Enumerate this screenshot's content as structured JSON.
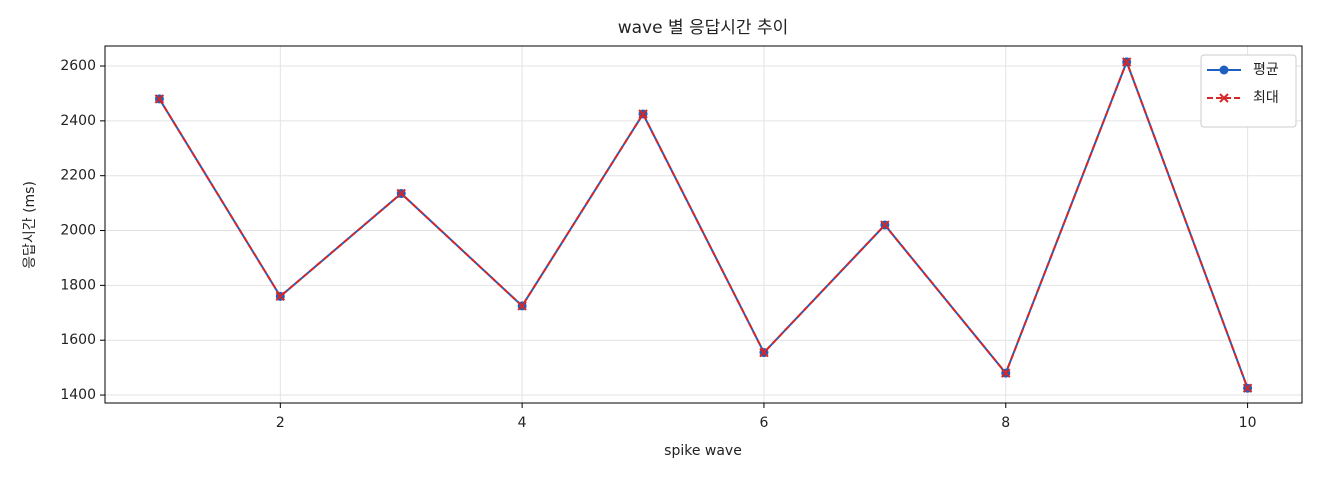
{
  "chart_data": {
    "type": "line",
    "title": "wave 별 응답시간 추이",
    "xlabel": "spike wave",
    "ylabel": "응답시간 (ms)",
    "x": [
      1,
      2,
      3,
      4,
      5,
      6,
      7,
      8,
      9,
      10
    ],
    "series": [
      {
        "name": "평균",
        "color": "#1f5fbf",
        "marker": "o",
        "linestyle": "solid",
        "values": [
          2480,
          1760,
          2135,
          1725,
          2425,
          1555,
          2020,
          1480,
          2615,
          1425
        ]
      },
      {
        "name": "최대",
        "color": "#d62728",
        "marker": "x",
        "linestyle": "dashed",
        "values": [
          2480,
          1760,
          2135,
          1725,
          2425,
          1555,
          2020,
          1480,
          2615,
          1425
        ]
      }
    ],
    "xlim": [
      0.55,
      10.45
    ],
    "ylim": [
      1371,
      2673
    ],
    "xticks": [
      2,
      4,
      6,
      8,
      10
    ],
    "yticks": [
      1400,
      1600,
      1800,
      2000,
      2200,
      2400,
      2600
    ],
    "grid": true,
    "legend": "upper right"
  }
}
